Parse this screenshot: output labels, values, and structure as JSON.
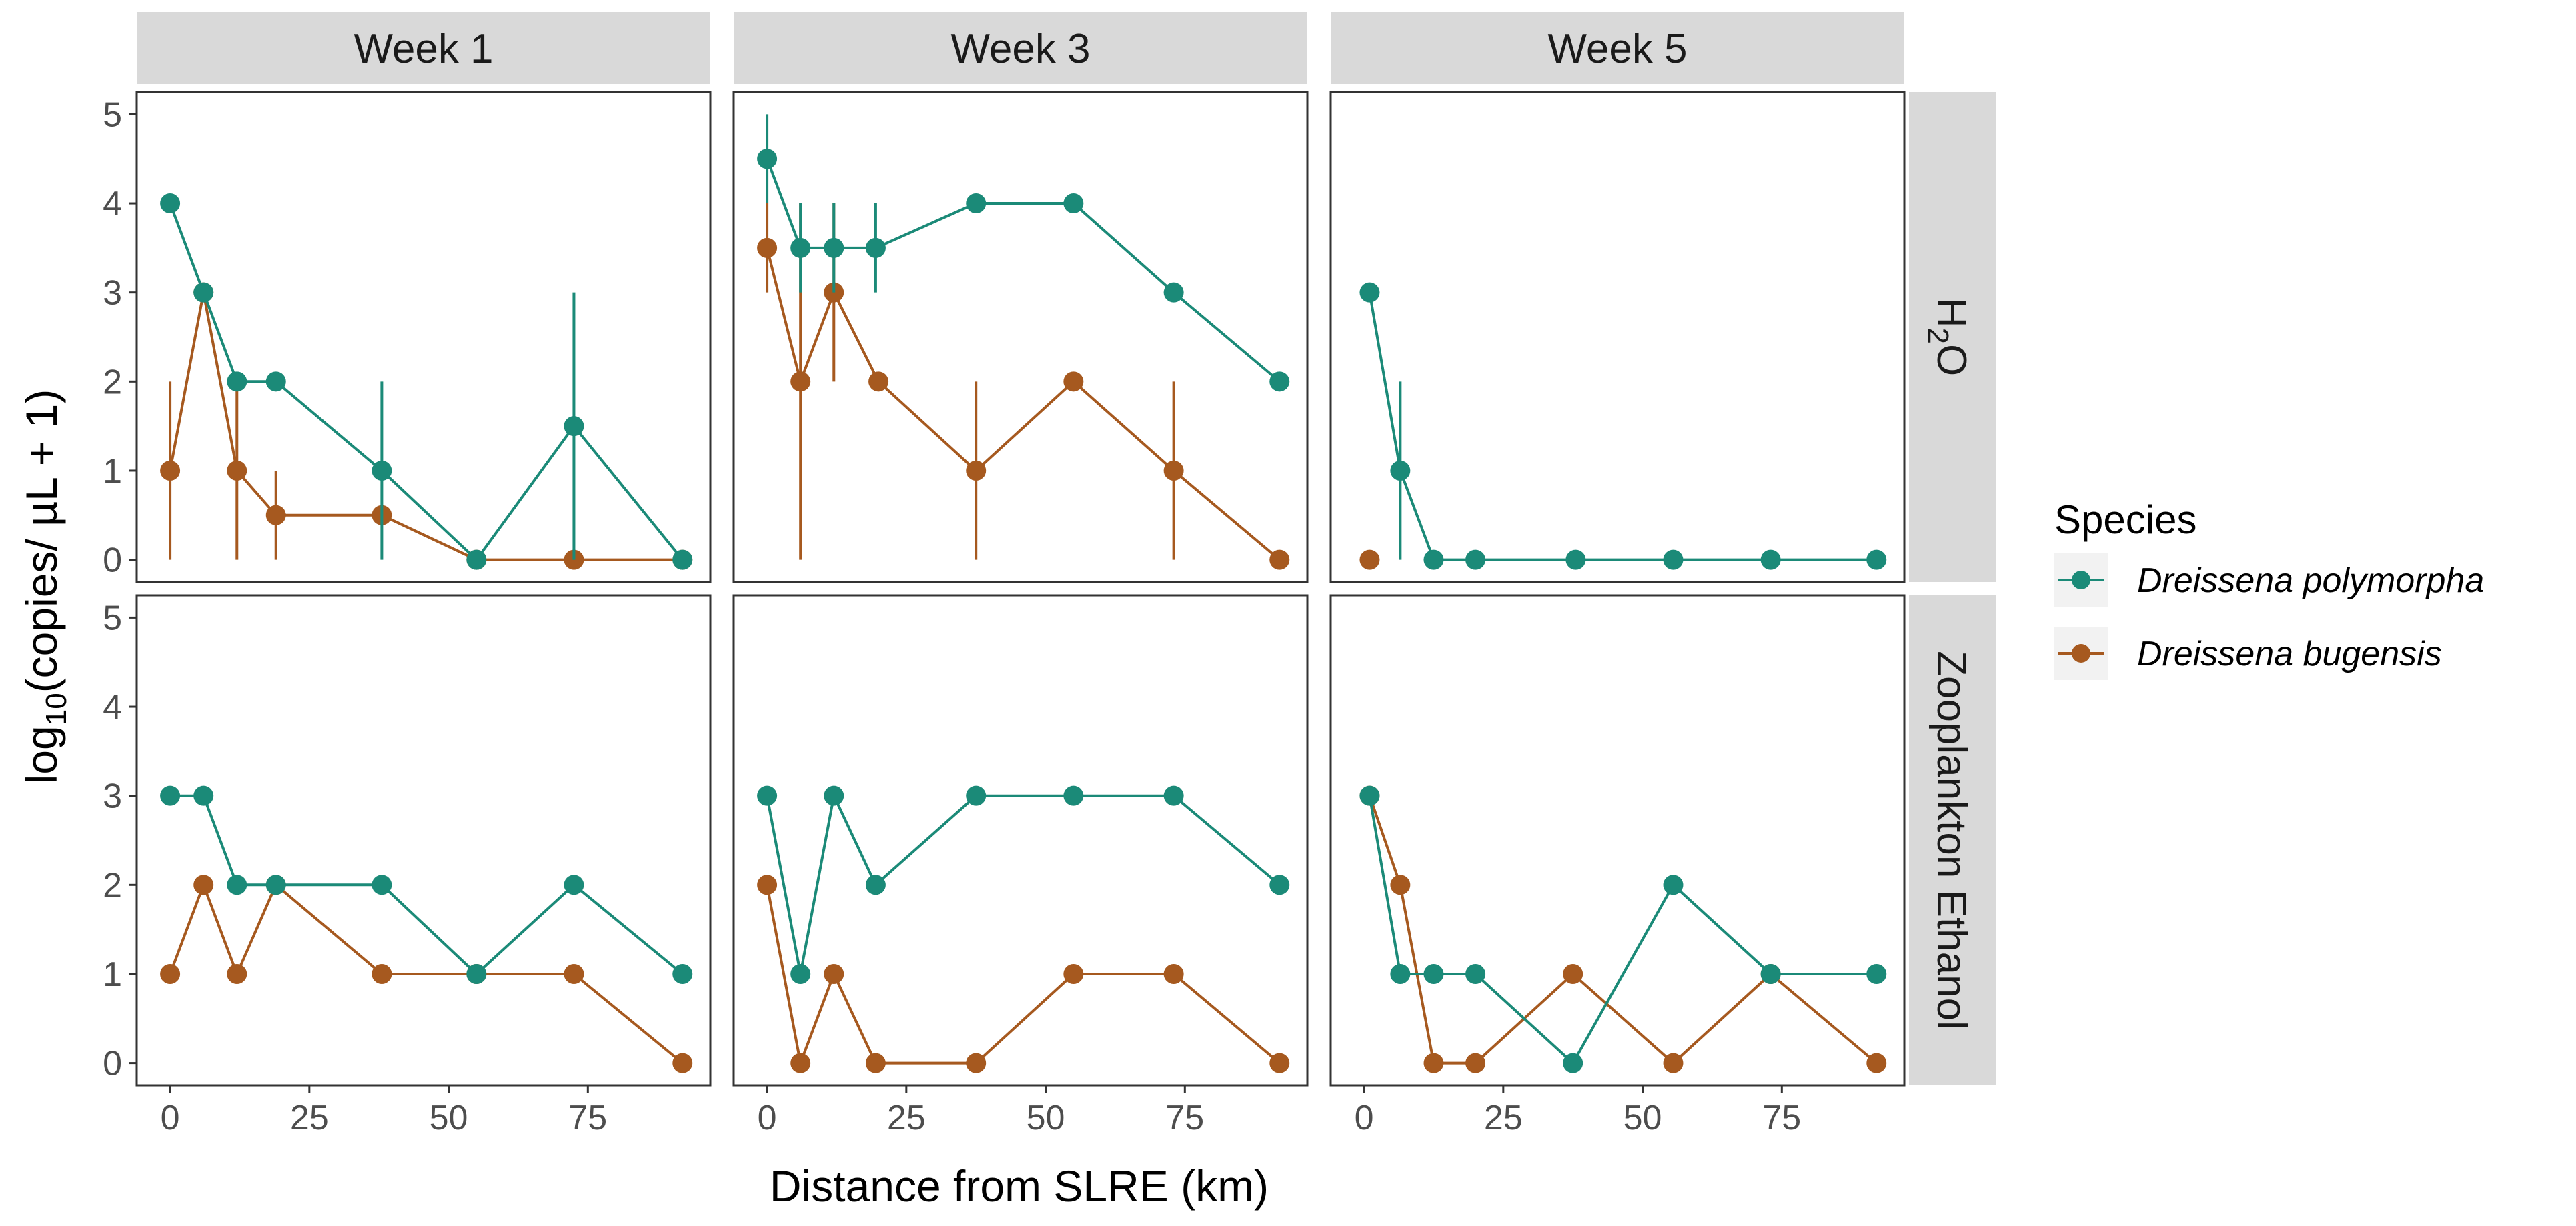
{
  "chart_data": {
    "type": "line",
    "facet_cols": [
      "Week 1",
      "Week 3",
      "Week 5"
    ],
    "facet_rows": [
      {
        "key": "h2o",
        "label_main": "H",
        "label_sub": "2",
        "label_end": "O"
      },
      {
        "key": "zoo",
        "label_main": "Zooplankton Ethanol",
        "label_sub": "",
        "label_end": ""
      }
    ],
    "xlabel": "Distance from SLRE (km)",
    "ylabel_main": "log",
    "ylabel_sub": "10",
    "ylabel_rest": "(copies/ µL + 1)",
    "xlim": [
      -6,
      97
    ],
    "ylim": [
      -0.25,
      5.25
    ],
    "xticks": [
      0,
      25,
      50,
      75
    ],
    "yticks": [
      0,
      1,
      2,
      3,
      4,
      5
    ],
    "legend": {
      "title": "Species",
      "position": "right",
      "entries": [
        {
          "name": "Dreissena polymorpha",
          "color": "#1b8a78"
        },
        {
          "name": "Dreissena bugensis",
          "color": "#a6591f"
        }
      ]
    },
    "panels": [
      {
        "row": 0,
        "col": 0,
        "series": [
          {
            "name": "Dreissena polymorpha",
            "x": [
              0,
              6,
              12,
              19,
              38,
              55,
              72.5,
              92
            ],
            "y": [
              4,
              3,
              2,
              2,
              1,
              0,
              1.5,
              0
            ],
            "err": [
              null,
              null,
              null,
              null,
              [
                0,
                2
              ],
              null,
              [
                0,
                3
              ],
              null
            ]
          },
          {
            "name": "Dreissena bugensis",
            "x": [
              0,
              6,
              12,
              19,
              38,
              55,
              72.5,
              92
            ],
            "y": [
              1,
              3,
              1,
              0.5,
              0.5,
              0,
              0,
              0
            ],
            "err": [
              [
                0,
                2
              ],
              null,
              [
                0,
                2
              ],
              [
                0,
                1
              ],
              null,
              null,
              null,
              null
            ]
          }
        ]
      },
      {
        "row": 0,
        "col": 1,
        "series": [
          {
            "name": "Dreissena polymorpha",
            "x": [
              0,
              6,
              12,
              19.5,
              37.5,
              55,
              73,
              92
            ],
            "y": [
              4.5,
              3.5,
              3.5,
              3.5,
              4,
              4,
              3,
              2
            ],
            "err": [
              [
                4,
                5
              ],
              [
                3,
                4
              ],
              [
                3,
                4
              ],
              [
                3,
                4
              ],
              null,
              null,
              null,
              null
            ]
          },
          {
            "name": "Dreissena bugensis",
            "x": [
              0,
              6,
              12,
              20,
              37.5,
              55,
              73,
              92
            ],
            "y": [
              3.5,
              2,
              3,
              2,
              1,
              2,
              1,
              0
            ],
            "err": [
              [
                3,
                4
              ],
              [
                0,
                4
              ],
              [
                2,
                4
              ],
              null,
              [
                0,
                2
              ],
              null,
              [
                0,
                2
              ],
              null
            ]
          }
        ]
      },
      {
        "row": 0,
        "col": 2,
        "series": [
          {
            "name": "Dreissena polymorpha",
            "x": [
              1,
              6.5,
              12.5,
              20,
              38,
              55.5,
              73,
              92
            ],
            "y": [
              3,
              1,
              0,
              0,
              0,
              0,
              0,
              0
            ],
            "err": [
              null,
              [
                0,
                2
              ],
              null,
              null,
              null,
              null,
              null,
              null
            ]
          },
          {
            "name": "Dreissena bugensis",
            "x": [
              1
            ],
            "y": [
              0
            ],
            "err": [
              null
            ]
          }
        ]
      },
      {
        "row": 1,
        "col": 0,
        "series": [
          {
            "name": "Dreissena polymorpha",
            "x": [
              0,
              6,
              12,
              19,
              38,
              55,
              72.5,
              92
            ],
            "y": [
              3,
              3,
              2,
              2,
              2,
              1,
              2,
              1
            ],
            "err": [
              null,
              null,
              null,
              null,
              null,
              null,
              null,
              null
            ]
          },
          {
            "name": "Dreissena bugensis",
            "x": [
              0,
              6,
              12,
              19,
              38,
              55,
              72.5,
              92
            ],
            "y": [
              1,
              2,
              1,
              2,
              1,
              1,
              1,
              0
            ],
            "err": [
              null,
              null,
              null,
              null,
              null,
              null,
              null,
              null
            ]
          }
        ]
      },
      {
        "row": 1,
        "col": 1,
        "series": [
          {
            "name": "Dreissena polymorpha",
            "x": [
              0,
              6,
              12,
              19.5,
              37.5,
              55,
              73,
              92
            ],
            "y": [
              3,
              1,
              3,
              2,
              3,
              3,
              3,
              2
            ],
            "err": [
              null,
              null,
              null,
              null,
              null,
              null,
              null,
              null
            ]
          },
          {
            "name": "Dreissena bugensis",
            "x": [
              0,
              6,
              12,
              19.5,
              37.5,
              55,
              73,
              92
            ],
            "y": [
              2,
              0,
              1,
              0,
              0,
              1,
              1,
              0
            ],
            "err": [
              null,
              null,
              null,
              null,
              null,
              null,
              null,
              null
            ]
          }
        ]
      },
      {
        "row": 1,
        "col": 2,
        "series": [
          {
            "name": "Dreissena polymorpha",
            "x": [
              1,
              6.5,
              12.5,
              20,
              37.5,
              55.5,
              73,
              92
            ],
            "y": [
              3,
              1,
              1,
              1,
              0,
              2,
              1,
              1
            ],
            "err": [
              null,
              null,
              null,
              null,
              null,
              null,
              null,
              null
            ]
          },
          {
            "name": "Dreissena bugensis",
            "x": [
              1,
              6.5,
              12.5,
              20,
              37.5,
              55.5,
              73,
              92
            ],
            "y": [
              3,
              2,
              0,
              0,
              1,
              0,
              1,
              0
            ],
            "err": [
              null,
              null,
              null,
              null,
              null,
              null,
              null,
              null
            ]
          }
        ]
      }
    ]
  }
}
